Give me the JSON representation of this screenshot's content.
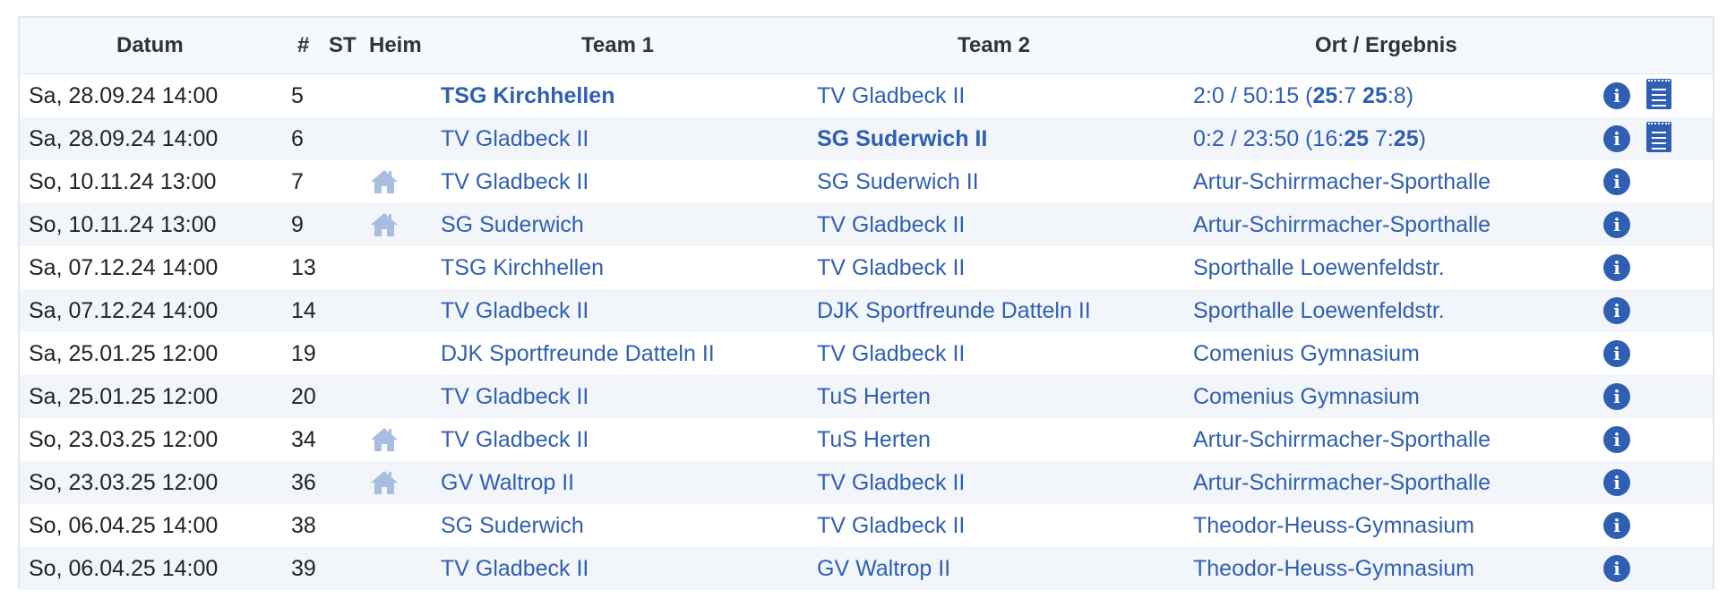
{
  "columns": {
    "datum": "Datum",
    "nr": "#",
    "st": "ST",
    "heim": "Heim",
    "team1": "Team 1",
    "team2": "Team 2",
    "ort": "Ort / Ergebnis"
  },
  "icons": {
    "info": "info-icon",
    "report": "report-icon",
    "home": "home-icon"
  },
  "colors": {
    "link": "#2f5fb3",
    "header_bg": "#f5f8fc",
    "row_alt_bg": "#f2f6fb",
    "home_icon": "#a9bde0"
  },
  "rows": [
    {
      "date": "Sa, 28.09.24 14:00",
      "nr": "5",
      "home": false,
      "team1": "TSG Kirchhellen",
      "team1_bold": true,
      "team2": "TV Gladbeck II",
      "team2_bold": false,
      "ort": "",
      "result": [
        {
          "t": "2:0 / 50:15 (",
          "b": false
        },
        {
          "t": "25",
          "b": true
        },
        {
          "t": ":7 ",
          "b": false
        },
        {
          "t": "25",
          "b": true
        },
        {
          "t": ":8)",
          "b": false
        }
      ],
      "report": true
    },
    {
      "date": "Sa, 28.09.24 14:00",
      "nr": "6",
      "home": false,
      "team1": "TV Gladbeck II",
      "team1_bold": false,
      "team2": "SG Suderwich II",
      "team2_bold": true,
      "ort": "",
      "result": [
        {
          "t": "0:2 / 23:50 (16:",
          "b": false
        },
        {
          "t": "25",
          "b": true
        },
        {
          "t": " 7:",
          "b": false
        },
        {
          "t": "25",
          "b": true
        },
        {
          "t": ")",
          "b": false
        }
      ],
      "report": true
    },
    {
      "date": "So, 10.11.24 13:00",
      "nr": "7",
      "home": true,
      "team1": "TV Gladbeck II",
      "team1_bold": false,
      "team2": "SG Suderwich II",
      "team2_bold": false,
      "ort": "Artur-Schirrmacher-Sporthalle",
      "result": null,
      "report": false
    },
    {
      "date": "So, 10.11.24 13:00",
      "nr": "9",
      "home": true,
      "team1": "SG Suderwich",
      "team1_bold": false,
      "team2": "TV Gladbeck II",
      "team2_bold": false,
      "ort": "Artur-Schirrmacher-Sporthalle",
      "result": null,
      "report": false
    },
    {
      "date": "Sa, 07.12.24 14:00",
      "nr": "13",
      "home": false,
      "team1": "TSG Kirchhellen",
      "team1_bold": false,
      "team2": "TV Gladbeck II",
      "team2_bold": false,
      "ort": "Sporthalle Loewenfeldstr.",
      "result": null,
      "report": false
    },
    {
      "date": "Sa, 07.12.24 14:00",
      "nr": "14",
      "home": false,
      "team1": "TV Gladbeck II",
      "team1_bold": false,
      "team2": "DJK Sportfreunde Datteln II",
      "team2_bold": false,
      "ort": "Sporthalle Loewenfeldstr.",
      "result": null,
      "report": false
    },
    {
      "date": "Sa, 25.01.25 12:00",
      "nr": "19",
      "home": false,
      "team1": "DJK Sportfreunde Datteln II",
      "team1_bold": false,
      "team2": "TV Gladbeck II",
      "team2_bold": false,
      "ort": "Comenius Gymnasium",
      "result": null,
      "report": false
    },
    {
      "date": "Sa, 25.01.25 12:00",
      "nr": "20",
      "home": false,
      "team1": "TV Gladbeck II",
      "team1_bold": false,
      "team2": "TuS Herten",
      "team2_bold": false,
      "ort": "Comenius Gymnasium",
      "result": null,
      "report": false
    },
    {
      "date": "So, 23.03.25 12:00",
      "nr": "34",
      "home": true,
      "team1": "TV Gladbeck II",
      "team1_bold": false,
      "team2": "TuS Herten",
      "team2_bold": false,
      "ort": "Artur-Schirrmacher-Sporthalle",
      "result": null,
      "report": false
    },
    {
      "date": "So, 23.03.25 12:00",
      "nr": "36",
      "home": true,
      "team1": "GV Waltrop II",
      "team1_bold": false,
      "team2": "TV Gladbeck II",
      "team2_bold": false,
      "ort": "Artur-Schirrmacher-Sporthalle",
      "result": null,
      "report": false
    },
    {
      "date": "So, 06.04.25 14:00",
      "nr": "38",
      "home": false,
      "team1": "SG Suderwich",
      "team1_bold": false,
      "team2": "TV Gladbeck II",
      "team2_bold": false,
      "ort": "Theodor-Heuss-Gymnasium",
      "result": null,
      "report": false
    },
    {
      "date": "So, 06.04.25 14:00",
      "nr": "39",
      "home": false,
      "team1": "TV Gladbeck II",
      "team1_bold": false,
      "team2": "GV Waltrop II",
      "team2_bold": false,
      "ort": "Theodor-Heuss-Gymnasium",
      "result": null,
      "report": false
    }
  ]
}
